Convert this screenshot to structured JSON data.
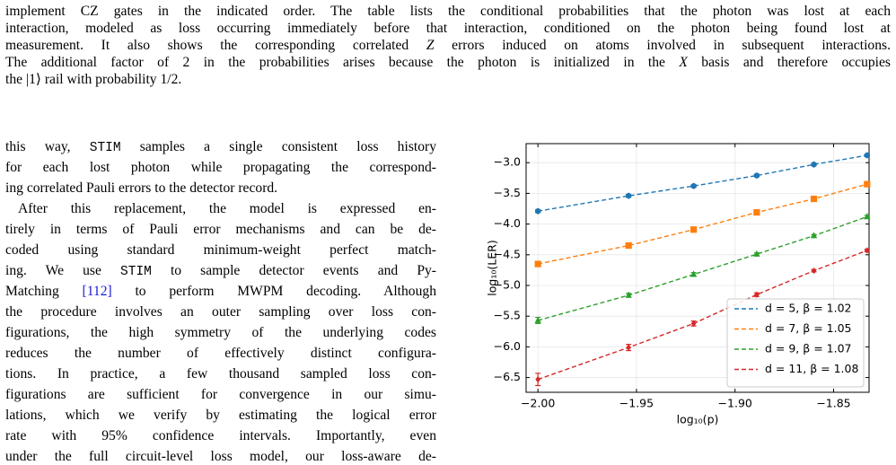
{
  "caption": {
    "lines": [
      [
        "implement CZ gates in the indicated order. The table lists the conditional probabilities that the photon was lost at each"
      ],
      [
        "interaction, modeled as loss occurring immediately before that interaction, conditioned on the photon being found lost at"
      ],
      [
        "measurement. It also shows the corresponding correlated ",
        "Z",
        " errors induced on atoms involved in subsequent interactions."
      ],
      [
        "The additional factor of 2 in the probabilities arises because the photon is initialized in the ",
        "X",
        " basis and therefore occupies"
      ],
      [
        "the |1⟩ rail with probability 1/2."
      ]
    ]
  },
  "body": {
    "lines": [
      [
        "this way, ",
        "STIM",
        " samples a single consistent loss history"
      ],
      [
        "for each lost photon while propagating the correspond-"
      ],
      [
        "ing correlated Pauli errors to the detector record."
      ],
      [
        "After this replacement, the model is expressed en-"
      ],
      [
        "tirely in terms of Pauli error mechanisms and can be de-"
      ],
      [
        "coded using standard minimum-weight perfect match-"
      ],
      [
        "ing. We use ",
        "STIM",
        " to sample detector events and Py-"
      ],
      [
        "Matching ",
        "[112]",
        " to perform MWPM decoding. Although"
      ],
      [
        "the procedure involves an outer sampling over loss con-"
      ],
      [
        "figurations, the high symmetry of the underlying codes"
      ],
      [
        "reduces the number of effectively distinct configura-"
      ],
      [
        "tions. In practice, a few thousand sampled loss con-"
      ],
      [
        "figurations are sufficient for convergence in our simu-"
      ],
      [
        "lations, which we verify by estimating the logical error"
      ],
      [
        "rate with 95% confidence intervals. Importantly, even"
      ],
      [
        "under the full circuit-level loss model, our loss-aware de-"
      ]
    ]
  },
  "chart_data": {
    "type": "line",
    "xlabel": "log₁₀(p)",
    "ylabel": "log₁₀(LER)",
    "x": [
      -2.0,
      -1.954,
      -1.921,
      -1.889,
      -1.86,
      -1.833
    ],
    "series": [
      {
        "name": "d = 5, β = 1.02",
        "color": "#1f77b4",
        "marker": "hexagon",
        "values": [
          -3.79,
          -3.54,
          -3.38,
          -3.21,
          -3.03,
          -2.88
        ],
        "errors": [
          0.02,
          0.02,
          0.01,
          0.01,
          0.01,
          0.01
        ]
      },
      {
        "name": "d = 7, β = 1.05",
        "color": "#ff7f0e",
        "marker": "square",
        "values": [
          -4.65,
          -4.35,
          -4.09,
          -3.81,
          -3.59,
          -3.35
        ],
        "errors": [
          0.03,
          0.02,
          0.02,
          0.02,
          0.01,
          0.01
        ]
      },
      {
        "name": "d = 9, β = 1.07",
        "color": "#2ca02c",
        "marker": "triangle",
        "values": [
          -5.57,
          -5.16,
          -4.82,
          -4.49,
          -4.19,
          -3.88
        ],
        "errors": [
          0.05,
          0.03,
          0.03,
          0.02,
          0.02,
          0.02
        ]
      },
      {
        "name": "d = 11, β = 1.08",
        "color": "#d62728",
        "marker": "diamond",
        "values": [
          -6.53,
          -6.01,
          -5.62,
          -5.15,
          -4.76,
          -4.43
        ],
        "errors": [
          0.1,
          0.05,
          0.04,
          0.03,
          0.02,
          0.02
        ]
      }
    ],
    "xlim": [
      -2.006,
      -1.832
    ],
    "ylim": [
      -6.74,
      -2.69
    ],
    "xticks": [
      {
        "value": -2.0,
        "label": "−2.00"
      },
      {
        "value": -1.95,
        "label": "−1.95"
      },
      {
        "value": -1.9,
        "label": "−1.90"
      },
      {
        "value": -1.85,
        "label": "−1.85"
      }
    ],
    "yticks": [
      {
        "value": -6.5,
        "label": "−6.5"
      },
      {
        "value": -6.0,
        "label": "−6.0"
      },
      {
        "value": -5.5,
        "label": "−5.5"
      },
      {
        "value": -5.0,
        "label": "−5.0"
      },
      {
        "value": -4.5,
        "label": "−4.5"
      },
      {
        "value": -4.0,
        "label": "−4.0"
      },
      {
        "value": -3.5,
        "label": "−3.5"
      },
      {
        "value": -3.0,
        "label": "−3.0"
      }
    ],
    "grid": true,
    "legend": "lower right"
  }
}
